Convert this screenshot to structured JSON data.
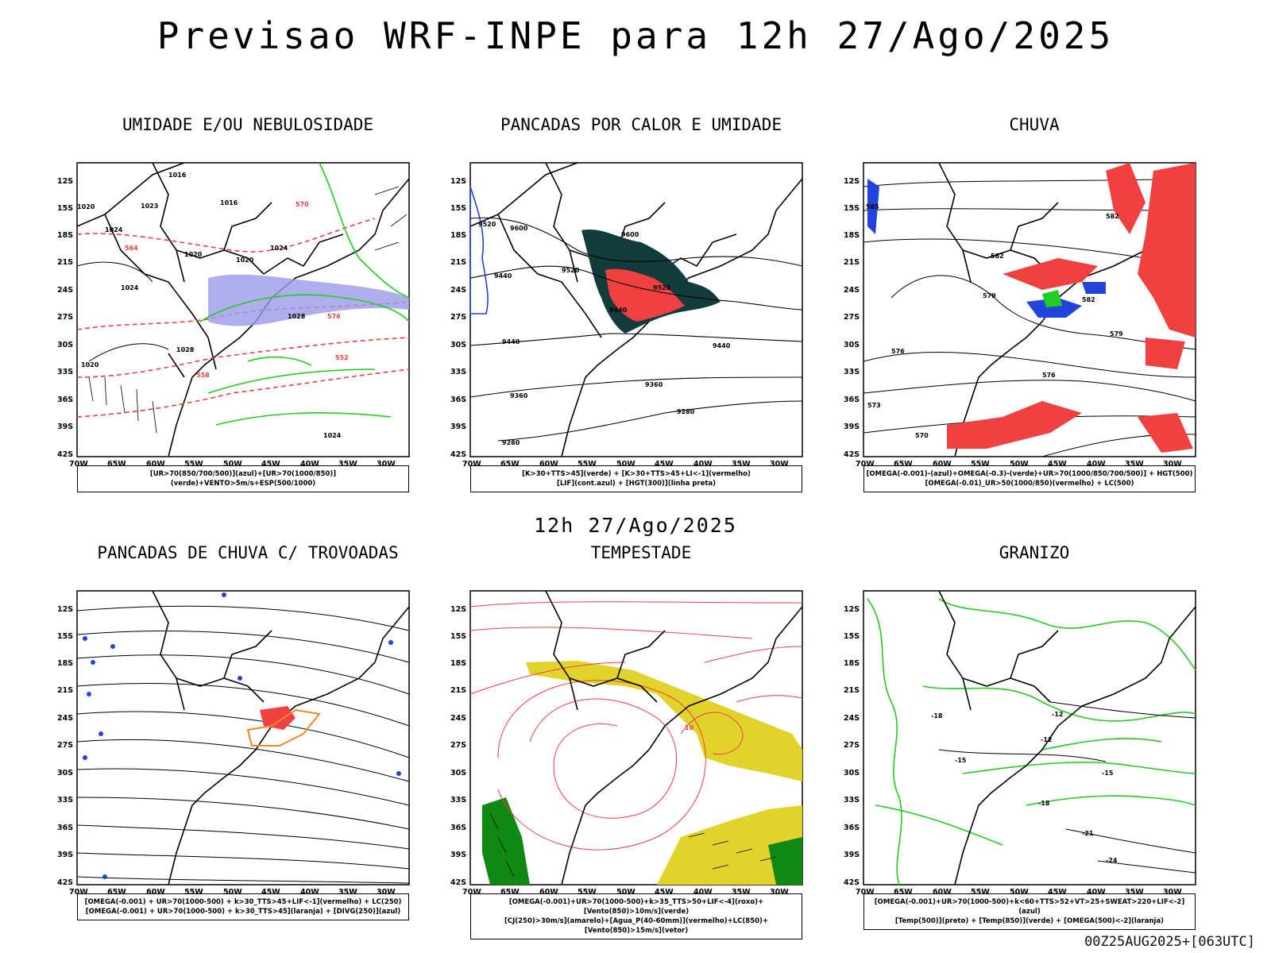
{
  "title": "Previsao WRF-INPE  para 12h 27/Ago/2025",
  "subtitle": "12h 27/Ago/2025",
  "footer": "00Z25AUG2025+[063UTC]",
  "axes": {
    "lat_labels": [
      "12S",
      "15S",
      "18S",
      "21S",
      "24S",
      "27S",
      "30S",
      "33S",
      "36S",
      "39S",
      "42S"
    ],
    "lon_labels": [
      "70W",
      "65W",
      "60W",
      "55W",
      "50W",
      "45W",
      "40W",
      "35W",
      "30W"
    ]
  },
  "colors": {
    "red": "#f04040",
    "green": "#22cc22",
    "blue": "#2244dd",
    "lavender": "#9a9ae8",
    "teal": "#123c3c",
    "yellow": "#e2d22c",
    "orange": "#ee8822",
    "darkgreen": "#118811"
  },
  "panels": [
    {
      "id": "umidade",
      "title": "UMIDADE E/OU NEBULOSIDADE",
      "legend": [
        "[UR>70(850/700/500)](azul)+[UR>70(1000/850)](verde)+VENTO>5m/s+ESP(500/1000)"
      ],
      "contour_labels": [
        "1016",
        "1023",
        "1016",
        "1024",
        "1020",
        "1020",
        "1024",
        "1024",
        "1020",
        "1028",
        "1020",
        "1028",
        "1024",
        "564",
        "552",
        "558",
        "570",
        "576"
      ]
    },
    {
      "id": "pancadas-calor",
      "title": "PANCADAS POR CALOR E UMIDADE",
      "legend": [
        "[K>30+TTS>45](verde) + [K>30+TTS>45+LI<-1](vermelho)",
        "[LIF](cont.azul) + [HGT(300)](linha preta)"
      ],
      "contour_labels": [
        "9600",
        "9520",
        "9600",
        "9520",
        "9440",
        "9520",
        "9440",
        "9440",
        "9440",
        "9360",
        "9360",
        "9280",
        "9280"
      ]
    },
    {
      "id": "chuva",
      "title": "CHUVA",
      "legend": [
        "[OMEGA(-0.001)-(azul)+OMEGA(-0.3)-(verde)+UR>70(1000/850/700/500)] + HGT(500)",
        "[OMEGA(-0.01)_UR>50(1000/850)(vermelho) + LC(500)"
      ],
      "contour_labels": [
        "585",
        "582",
        "582",
        "579",
        "576",
        "576",
        "573",
        "570",
        "582",
        "579"
      ]
    },
    {
      "id": "trovoadas",
      "title": "PANCADAS DE CHUVA C/ TROVOADAS",
      "legend": [
        "[OMEGA(-0.001) + UR>70(1000-500) + k>30_TTS>45+LIF<-1](vermelho) + LC(250)",
        "[OMEGA(-0.001) + UR>70(1000-500) + k>30_TTS>45](laranja) + [DIVG(250)](azul)"
      ],
      "contour_labels": []
    },
    {
      "id": "tempestade",
      "title": "TEMPESTADE",
      "legend": [
        "[OMEGA(-0.001)+UR>70(1000-500)+k>35_TTS>50+LIF<-4](roxo)+[Vento(850)>10m/s](verde)",
        "[CJ(250)>30m/s](amarelo)+[Agua_P(40-60mm)](vermelho)+LC(850)+[Vento(850)>15m/s](vetor)"
      ],
      "contour_labels": [
        "10"
      ]
    },
    {
      "id": "granizo",
      "title": "GRANIZO",
      "legend": [
        "[OMEGA(-0.001)+UR>70(1000-500)+k<60+TTS>52+VT>25+SWEAT>220+LIF<-2](azul)",
        "[Temp(500)](preto) + [Temp(850)](verde) + [OMEGA(500)<-2](laranja)"
      ],
      "contour_labels": [
        "-12",
        "-12",
        "-15",
        "-15",
        "-18",
        "-18",
        "-21",
        "-24"
      ]
    }
  ]
}
